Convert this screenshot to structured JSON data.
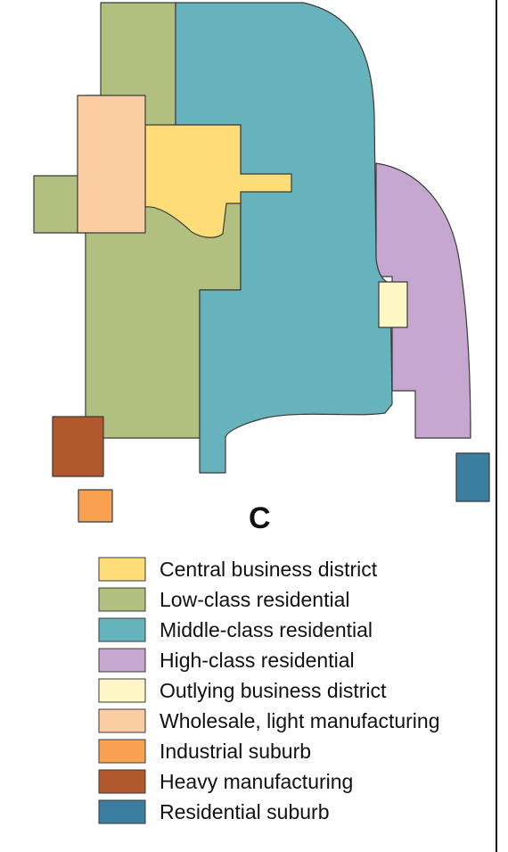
{
  "diagram": {
    "panel_label": "C",
    "zones": [
      {
        "id": "central-business-district",
        "label": "Central business district",
        "color": "#fedc78"
      },
      {
        "id": "low-class-residential",
        "label": "Low-class residential",
        "color": "#b2c07f"
      },
      {
        "id": "middle-class-residential",
        "label": "Middle-class residential",
        "color": "#66b3bd"
      },
      {
        "id": "high-class-residential",
        "label": "High-class residential",
        "color": "#c6a7d0"
      },
      {
        "id": "outlying-business-district",
        "label": "Outlying business district",
        "color": "#fff8c6"
      },
      {
        "id": "wholesale-light-manufacturing",
        "label": "Wholesale, light manufacturing",
        "color": "#fccca2"
      },
      {
        "id": "industrial-suburb",
        "label": "Industrial suburb",
        "color": "#f9a151"
      },
      {
        "id": "heavy-manufacturing",
        "label": "Heavy manufacturing",
        "color": "#b1582e"
      },
      {
        "id": "residential-suburb",
        "label": "Residential suburb",
        "color": "#3c7ea0"
      }
    ]
  }
}
